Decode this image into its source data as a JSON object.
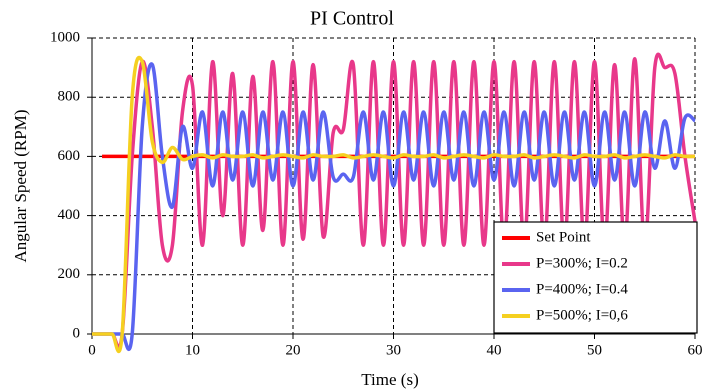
{
  "chart_data": {
    "type": "line",
    "title": "PI Control",
    "x_label": "Time (s)",
    "y_label": "Angular Speed (RPM)",
    "x": [
      0,
      1,
      2,
      3,
      4,
      5,
      6,
      7,
      8,
      9,
      10,
      11,
      12,
      13,
      14,
      15,
      16,
      17,
      18,
      19,
      20,
      21,
      22,
      23,
      24,
      25,
      26,
      27,
      28,
      29,
      30,
      31,
      32,
      33,
      34,
      35,
      36,
      37,
      38,
      39,
      40,
      41,
      42,
      43,
      44,
      45,
      46,
      47,
      48,
      49,
      50,
      51,
      52,
      53,
      54,
      55,
      56,
      57,
      58,
      59,
      60
    ],
    "series": [
      {
        "name": "Set Point",
        "color": "#ff0000",
        "values": [
          null,
          600,
          600,
          600,
          600,
          600,
          600,
          600,
          600,
          600,
          600,
          600,
          600,
          600,
          600,
          600,
          600,
          600,
          600,
          600,
          600,
          600,
          600,
          600,
          600,
          600,
          600,
          600,
          600,
          600,
          600,
          600,
          600,
          600,
          600,
          600,
          600,
          600,
          600,
          600,
          600,
          600,
          600,
          600,
          600,
          600,
          600,
          600,
          600,
          600,
          600,
          600,
          600,
          600,
          600,
          600,
          600,
          600,
          600,
          600,
          600
        ]
      },
      {
        "name": "P=300%; I=0.2",
        "color": "#e8388a",
        "values": [
          0,
          0,
          0,
          0,
          600,
          920,
          700,
          300,
          300,
          750,
          840,
          300,
          920,
          400,
          880,
          300,
          870,
          350,
          920,
          300,
          920,
          320,
          910,
          330,
          680,
          690,
          910,
          300,
          920,
          300,
          920,
          300,
          920,
          300,
          920,
          300,
          920,
          300,
          920,
          300,
          920,
          300,
          920,
          300,
          920,
          300,
          920,
          300,
          920,
          300,
          920,
          300,
          910,
          300,
          930,
          300,
          900,
          900,
          880,
          600,
          380
        ]
      },
      {
        "name": "P=400%; I=0.4",
        "color": "#5a64f0",
        "values": [
          0,
          0,
          0,
          0,
          0,
          700,
          910,
          600,
          430,
          700,
          560,
          750,
          500,
          750,
          520,
          750,
          500,
          750,
          520,
          750,
          500,
          750,
          520,
          750,
          530,
          540,
          530,
          750,
          520,
          750,
          500,
          750,
          520,
          750,
          500,
          750,
          520,
          750,
          500,
          750,
          520,
          750,
          500,
          750,
          520,
          750,
          500,
          750,
          520,
          750,
          500,
          750,
          520,
          750,
          500,
          750,
          560,
          720,
          560,
          730,
          720
        ]
      },
      {
        "name": "P=500%; I=0,6",
        "color": "#f5d020",
        "values": [
          0,
          0,
          0,
          0,
          800,
          920,
          650,
          580,
          630,
          590,
          600,
          605,
          595,
          605,
          600,
          600,
          605,
          595,
          600,
          605,
          600,
          595,
          605,
          600,
          600,
          605,
          595,
          600,
          605,
          600,
          595,
          605,
          600,
          600,
          605,
          595,
          600,
          605,
          600,
          595,
          605,
          600,
          600,
          605,
          595,
          600,
          605,
          600,
          595,
          605,
          600,
          600,
          605,
          595,
          600,
          605,
          600,
          595,
          605,
          600,
          600
        ]
      }
    ],
    "xlim": [
      0,
      60
    ],
    "xticks": [
      0,
      10,
      20,
      30,
      40,
      50,
      60
    ],
    "ylim": [
      0,
      1000
    ],
    "yticks": [
      0,
      200,
      400,
      600,
      800,
      1000
    ],
    "grid": true,
    "legend": "lower right"
  }
}
